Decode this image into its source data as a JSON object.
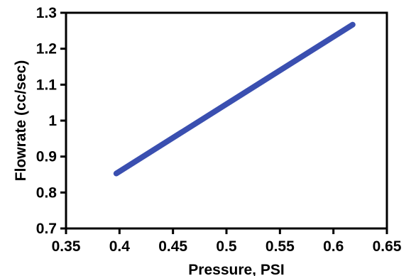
{
  "chart_data": {
    "type": "line",
    "title": "",
    "xlabel": "Pressure, PSI",
    "ylabel": "Flowrate (cc/sec)",
    "xlim": [
      0.35,
      0.65
    ],
    "ylim": [
      0.7,
      1.3
    ],
    "x_ticks": [
      "0.35",
      "0.4",
      "0.45",
      "0.5",
      "0.55",
      "0.6",
      "0.65"
    ],
    "y_ticks": [
      "0.7",
      "0.8",
      "0.9",
      "1",
      "1.1",
      "1.2",
      "1.3"
    ],
    "grid": false,
    "legend": "none",
    "series": [
      {
        "x": [
          0.397,
          0.618
        ],
        "y": [
          0.853,
          1.267
        ],
        "color": "#3a4fb0"
      }
    ]
  }
}
